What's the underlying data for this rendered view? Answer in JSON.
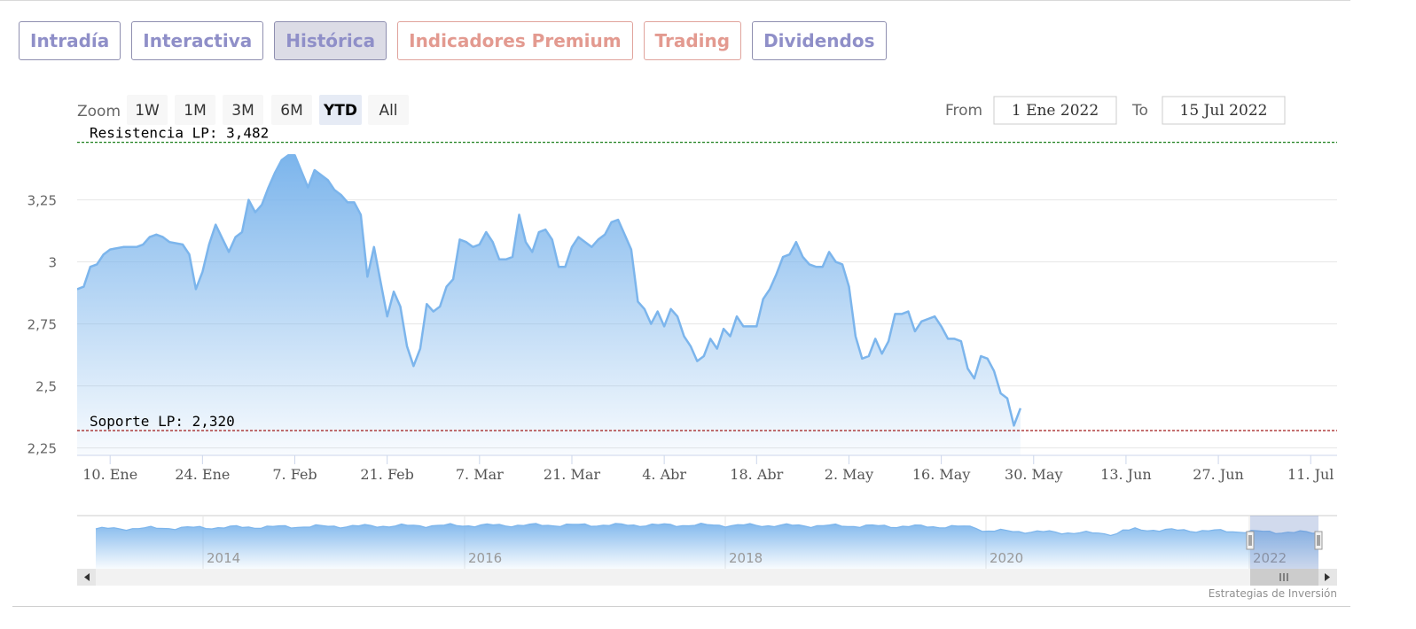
{
  "tabs": [
    {
      "label": "Intradía",
      "style": "normal"
    },
    {
      "label": "Interactiva",
      "style": "normal"
    },
    {
      "label": "Histórica",
      "style": "active"
    },
    {
      "label": "Indicadores Premium",
      "style": "premium"
    },
    {
      "label": "Trading",
      "style": "premium"
    },
    {
      "label": "Dividendos",
      "style": "normal"
    }
  ],
  "zoom": {
    "label": "Zoom",
    "buttons": [
      "1W",
      "1M",
      "3M",
      "6M",
      "YTD",
      "All"
    ],
    "selected": "YTD"
  },
  "range": {
    "from_label": "From",
    "from_value": "1 Ene 2022",
    "to_label": "To",
    "to_value": "15 Jul 2022"
  },
  "credit": "Estrategias de Inversión",
  "colors": {
    "series": "#7cb5ec",
    "resistance": "#1a7f1a",
    "support": "#a01a1a",
    "tab_text": "#8f8fc8",
    "premium_text": "#e39a90"
  },
  "chart_data": {
    "type": "area",
    "title": "",
    "xlabel": "",
    "ylabel": "",
    "x_range": [
      "2022-01-05",
      "2022-07-15"
    ],
    "ylim": [
      2.22,
      3.52
    ],
    "yticks": [
      2.25,
      2.5,
      2.75,
      3,
      3.25
    ],
    "ytick_labels": [
      "2,25",
      "2,5",
      "2,75",
      "3",
      "3,25"
    ],
    "xticks": [
      {
        "date": "2022-01-10",
        "label": "10. Ene"
      },
      {
        "date": "2022-01-24",
        "label": "24. Ene"
      },
      {
        "date": "2022-02-07",
        "label": "7. Feb"
      },
      {
        "date": "2022-02-21",
        "label": "21. Feb"
      },
      {
        "date": "2022-03-07",
        "label": "7. Mar"
      },
      {
        "date": "2022-03-21",
        "label": "21. Mar"
      },
      {
        "date": "2022-04-04",
        "label": "4. Abr"
      },
      {
        "date": "2022-04-18",
        "label": "18. Abr"
      },
      {
        "date": "2022-05-02",
        "label": "2. May"
      },
      {
        "date": "2022-05-16",
        "label": "16. May"
      },
      {
        "date": "2022-05-30",
        "label": "30. May"
      },
      {
        "date": "2022-06-13",
        "label": "13. Jun"
      },
      {
        "date": "2022-06-27",
        "label": "27. Jun"
      },
      {
        "date": "2022-07-11",
        "label": "11. Jul"
      }
    ],
    "grid": true,
    "legend": "none",
    "lines": [
      {
        "label": "Resistencia LP: 3,482",
        "value": 3.482,
        "color": "#1a7f1a"
      },
      {
        "label": "Soporte LP: 2,320",
        "value": 2.32,
        "color": "#a01a1a"
      }
    ],
    "series": [
      {
        "points": [
          [
            "2022-01-05",
            2.89
          ],
          [
            "2022-01-06",
            2.9
          ],
          [
            "2022-01-07",
            2.98
          ],
          [
            "2022-01-08",
            2.99
          ],
          [
            "2022-01-09",
            3.03
          ],
          [
            "2022-01-10",
            3.05
          ],
          [
            "2022-01-12",
            3.06
          ],
          [
            "2022-01-14",
            3.06
          ],
          [
            "2022-01-15",
            3.07
          ],
          [
            "2022-01-16",
            3.1
          ],
          [
            "2022-01-17",
            3.11
          ],
          [
            "2022-01-18",
            3.1
          ],
          [
            "2022-01-19",
            3.08
          ],
          [
            "2022-01-21",
            3.07
          ],
          [
            "2022-01-22",
            3.03
          ],
          [
            "2022-01-23",
            2.89
          ],
          [
            "2022-01-24",
            2.96
          ],
          [
            "2022-01-25",
            3.07
          ],
          [
            "2022-01-26",
            3.15
          ],
          [
            "2022-01-28",
            3.04
          ],
          [
            "2022-01-29",
            3.1
          ],
          [
            "2022-01-30",
            3.12
          ],
          [
            "2022-01-31",
            3.25
          ],
          [
            "2022-02-01",
            3.2
          ],
          [
            "2022-02-02",
            3.23
          ],
          [
            "2022-02-03",
            3.3
          ],
          [
            "2022-02-04",
            3.36
          ],
          [
            "2022-02-05",
            3.41
          ],
          [
            "2022-02-06",
            3.43
          ],
          [
            "2022-02-07",
            3.43
          ],
          [
            "2022-02-09",
            3.3
          ],
          [
            "2022-02-10",
            3.37
          ],
          [
            "2022-02-12",
            3.33
          ],
          [
            "2022-02-13",
            3.29
          ],
          [
            "2022-02-14",
            3.27
          ],
          [
            "2022-02-15",
            3.24
          ],
          [
            "2022-02-16",
            3.24
          ],
          [
            "2022-02-17",
            3.19
          ],
          [
            "2022-02-18",
            2.94
          ],
          [
            "2022-02-19",
            3.06
          ],
          [
            "2022-02-20",
            2.92
          ],
          [
            "2022-02-21",
            2.78
          ],
          [
            "2022-02-22",
            2.88
          ],
          [
            "2022-02-23",
            2.82
          ],
          [
            "2022-02-24",
            2.66
          ],
          [
            "2022-02-25",
            2.58
          ],
          [
            "2022-02-26",
            2.65
          ],
          [
            "2022-02-27",
            2.83
          ],
          [
            "2022-02-28",
            2.8
          ],
          [
            "2022-03-01",
            2.82
          ],
          [
            "2022-03-02",
            2.9
          ],
          [
            "2022-03-03",
            2.93
          ],
          [
            "2022-03-04",
            3.09
          ],
          [
            "2022-03-05",
            3.08
          ],
          [
            "2022-03-06",
            3.06
          ],
          [
            "2022-03-07",
            3.07
          ],
          [
            "2022-03-08",
            3.12
          ],
          [
            "2022-03-09",
            3.08
          ],
          [
            "2022-03-10",
            3.01
          ],
          [
            "2022-03-11",
            3.01
          ],
          [
            "2022-03-12",
            3.02
          ],
          [
            "2022-03-13",
            3.19
          ],
          [
            "2022-03-14",
            3.08
          ],
          [
            "2022-03-15",
            3.04
          ],
          [
            "2022-03-16",
            3.12
          ],
          [
            "2022-03-17",
            3.13
          ],
          [
            "2022-03-18",
            3.09
          ],
          [
            "2022-03-19",
            2.98
          ],
          [
            "2022-03-20",
            2.98
          ],
          [
            "2022-03-21",
            3.06
          ],
          [
            "2022-03-22",
            3.1
          ],
          [
            "2022-03-23",
            3.08
          ],
          [
            "2022-03-24",
            3.06
          ],
          [
            "2022-03-25",
            3.09
          ],
          [
            "2022-03-26",
            3.11
          ],
          [
            "2022-03-27",
            3.16
          ],
          [
            "2022-03-28",
            3.17
          ],
          [
            "2022-03-29",
            3.11
          ],
          [
            "2022-03-30",
            3.05
          ],
          [
            "2022-03-31",
            2.84
          ],
          [
            "2022-04-01",
            2.81
          ],
          [
            "2022-04-02",
            2.75
          ],
          [
            "2022-04-03",
            2.8
          ],
          [
            "2022-04-04",
            2.74
          ],
          [
            "2022-04-05",
            2.81
          ],
          [
            "2022-04-06",
            2.78
          ],
          [
            "2022-04-07",
            2.7
          ],
          [
            "2022-04-08",
            2.66
          ],
          [
            "2022-04-09",
            2.6
          ],
          [
            "2022-04-10",
            2.62
          ],
          [
            "2022-04-11",
            2.69
          ],
          [
            "2022-04-12",
            2.65
          ],
          [
            "2022-04-13",
            2.73
          ],
          [
            "2022-04-14",
            2.7
          ],
          [
            "2022-04-15",
            2.78
          ],
          [
            "2022-04-16",
            2.74
          ],
          [
            "2022-04-17",
            2.74
          ],
          [
            "2022-04-18",
            2.74
          ],
          [
            "2022-04-19",
            2.85
          ],
          [
            "2022-04-20",
            2.89
          ],
          [
            "2022-04-21",
            2.95
          ],
          [
            "2022-04-22",
            3.02
          ],
          [
            "2022-04-23",
            3.03
          ],
          [
            "2022-04-24",
            3.08
          ],
          [
            "2022-04-25",
            3.02
          ],
          [
            "2022-04-26",
            2.99
          ],
          [
            "2022-04-27",
            2.98
          ],
          [
            "2022-04-28",
            2.98
          ],
          [
            "2022-04-29",
            3.04
          ],
          [
            "2022-04-30",
            3.0
          ],
          [
            "2022-05-01",
            2.99
          ],
          [
            "2022-05-02",
            2.9
          ],
          [
            "2022-05-03",
            2.7
          ],
          [
            "2022-05-04",
            2.61
          ],
          [
            "2022-05-05",
            2.62
          ],
          [
            "2022-05-06",
            2.69
          ],
          [
            "2022-05-07",
            2.63
          ],
          [
            "2022-05-08",
            2.68
          ],
          [
            "2022-05-09",
            2.79
          ],
          [
            "2022-05-10",
            2.79
          ],
          [
            "2022-05-11",
            2.8
          ],
          [
            "2022-05-12",
            2.72
          ],
          [
            "2022-05-13",
            2.76
          ],
          [
            "2022-05-14",
            2.77
          ],
          [
            "2022-05-15",
            2.78
          ],
          [
            "2022-05-16",
            2.74
          ],
          [
            "2022-05-17",
            2.69
          ],
          [
            "2022-05-18",
            2.69
          ],
          [
            "2022-05-19",
            2.68
          ],
          [
            "2022-05-20",
            2.57
          ],
          [
            "2022-05-21",
            2.53
          ],
          [
            "2022-05-22",
            2.62
          ],
          [
            "2022-05-23",
            2.61
          ],
          [
            "2022-05-24",
            2.56
          ],
          [
            "2022-05-25",
            2.47
          ],
          [
            "2022-05-26",
            2.45
          ],
          [
            "2022-05-27",
            2.34
          ],
          [
            "2022-05-28",
            2.41
          ]
        ]
      }
    ]
  },
  "navigator": {
    "year_labels": [
      "2014",
      "2016",
      "2018",
      "2020",
      "2022"
    ]
  }
}
